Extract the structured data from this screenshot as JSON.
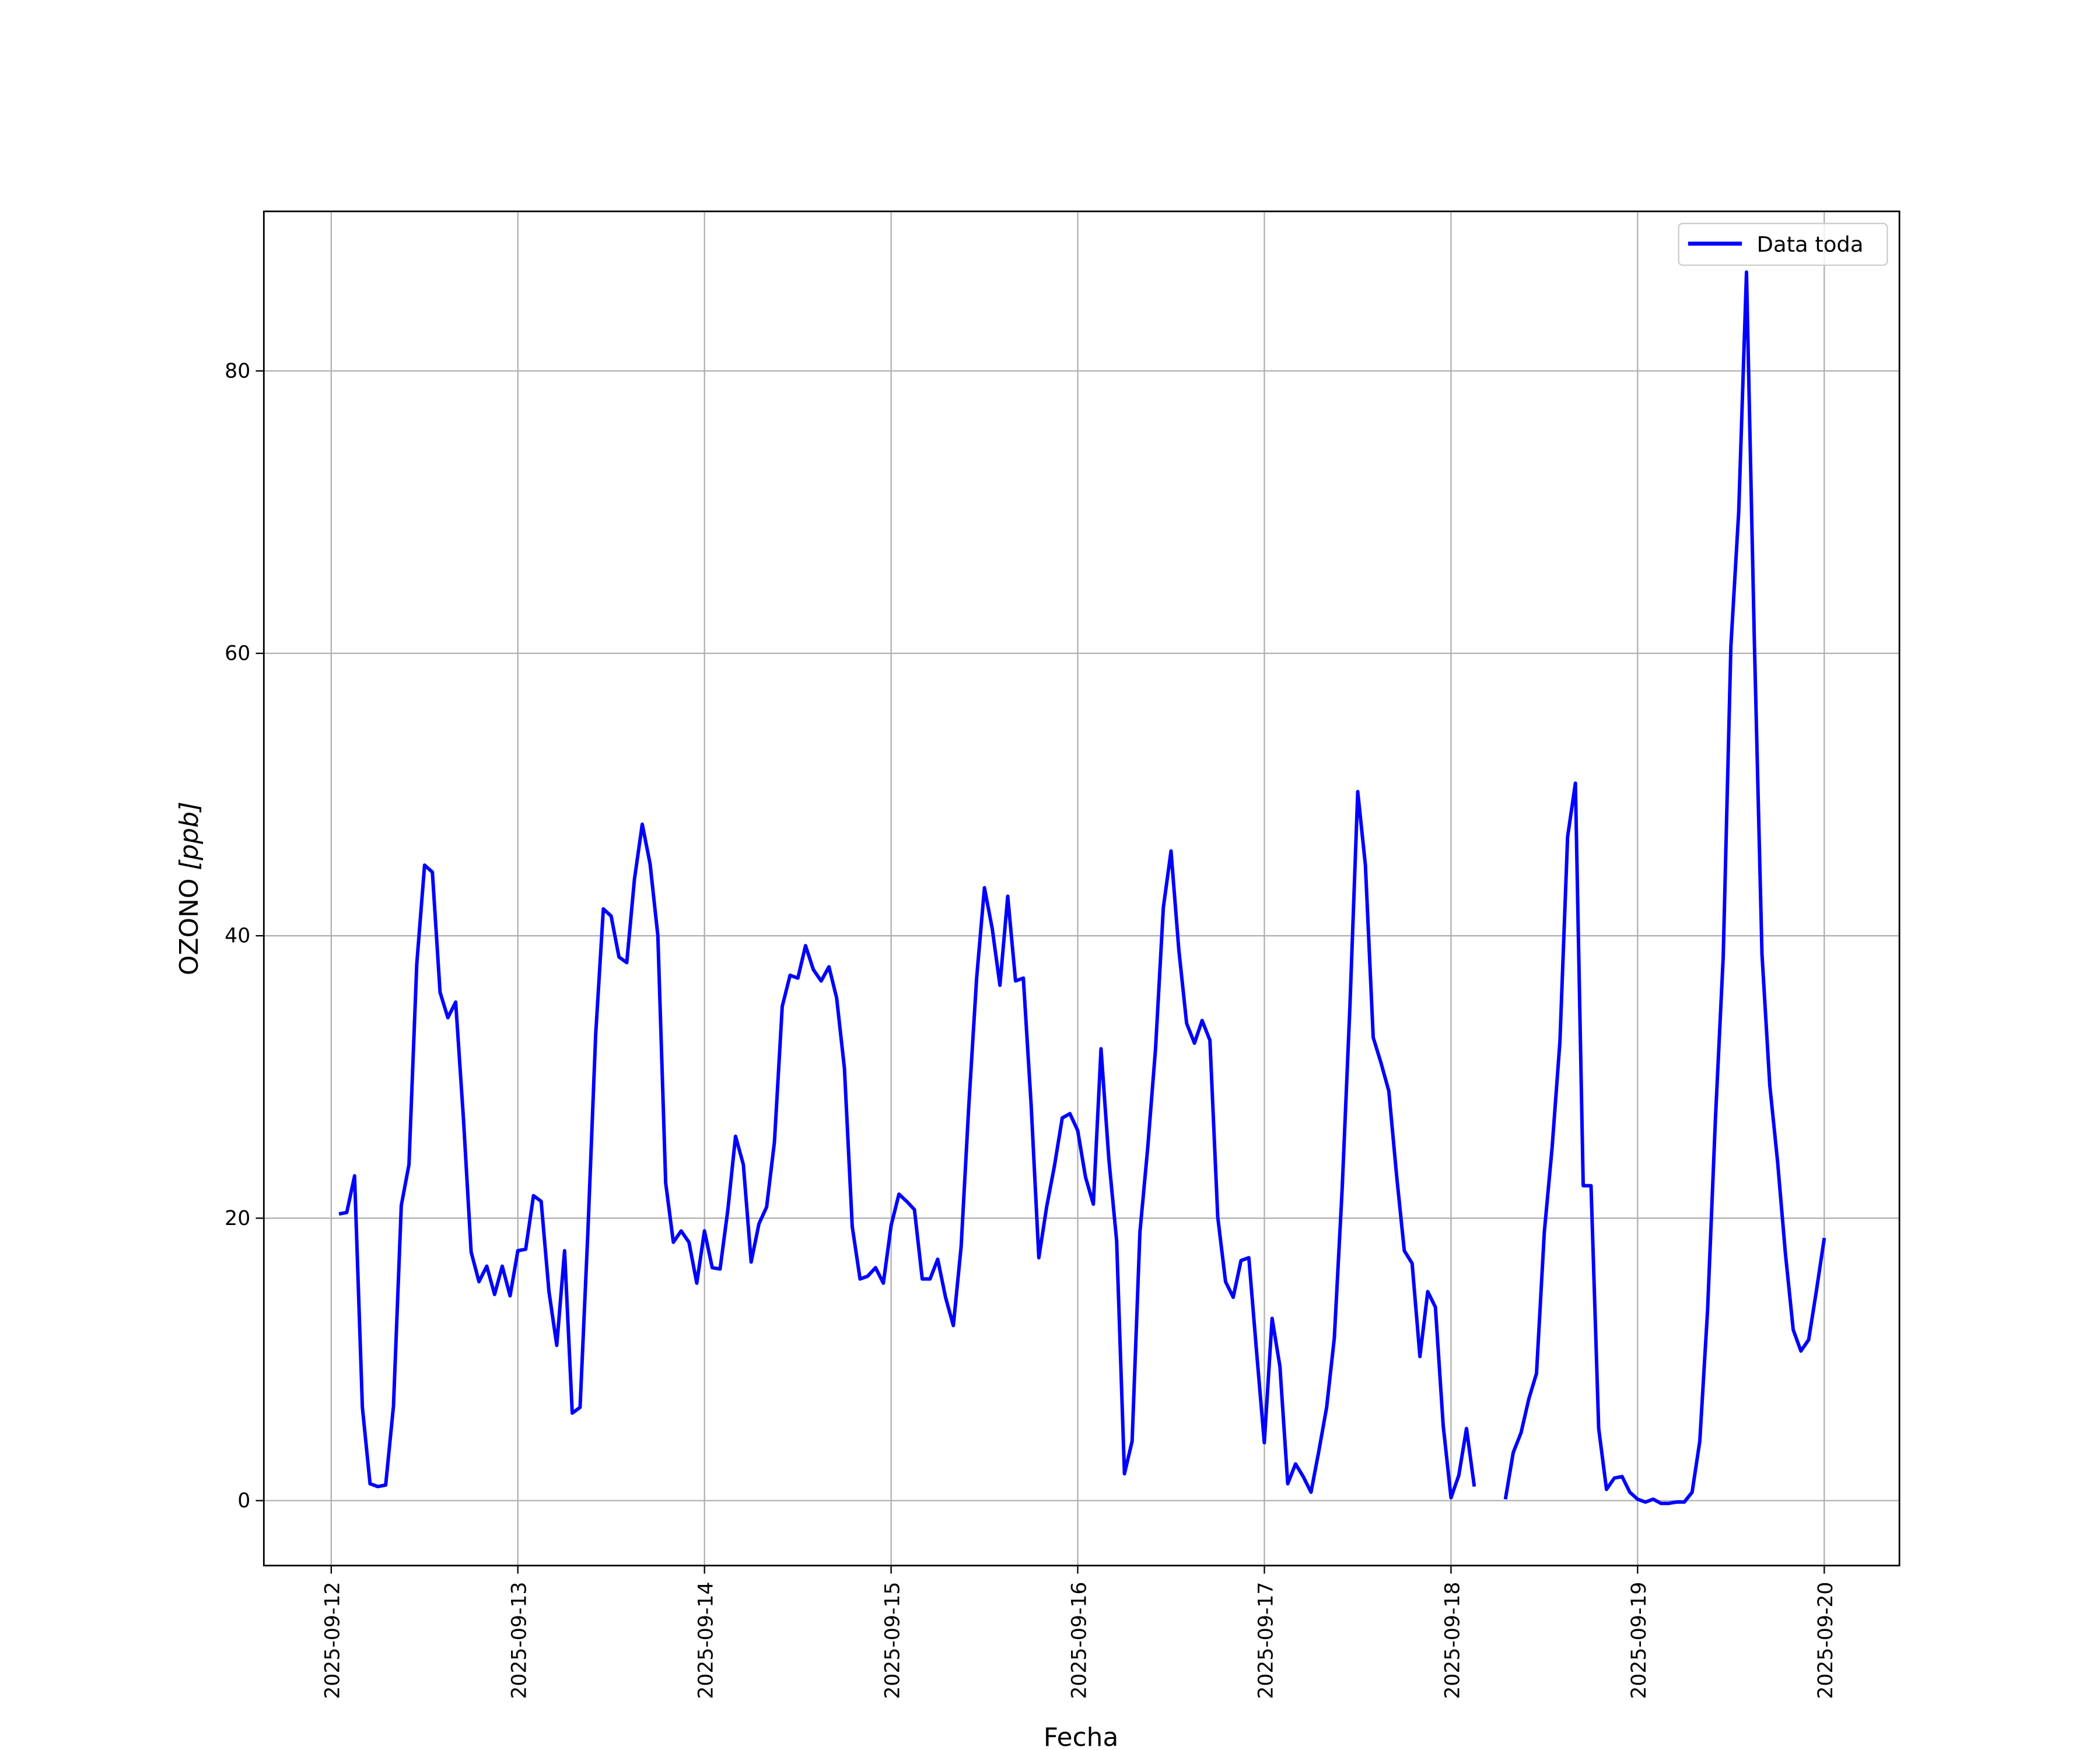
{
  "chart_data": {
    "type": "line",
    "title": "",
    "xlabel": "Fecha",
    "ylabel": "OZONO [ppb]",
    "ylabel_main": "OZONO",
    "ylabel_unit": "[ppb]",
    "ylim": [
      -4.6,
      91.3
    ],
    "xlim": [
      "2025-09-11T15:20",
      "2025-09-20T09:40"
    ],
    "grid": true,
    "legend_position": "top-right",
    "x_tick_labels": [
      "2025-09-12",
      "2025-09-13",
      "2025-09-14",
      "2025-09-15",
      "2025-09-16",
      "2025-09-17",
      "2025-09-18",
      "2025-09-19",
      "2025-09-20"
    ],
    "y_ticks": [
      0,
      20,
      40,
      60,
      80
    ],
    "y_tick_labels": [
      "0",
      "20",
      "40",
      "60",
      "80"
    ],
    "series": [
      {
        "name": "Data toda",
        "color": "#0000ff",
        "hourly_by_date": [
          {
            "date": "2025-09-12",
            "values": [
              null,
              20.3,
              20.4,
              23,
              6.6,
              1.2,
              1.0,
              1.1,
              6.7,
              20.9,
              23.8,
              38,
              45,
              44.5,
              36,
              34.2,
              35.3,
              27,
              17.6,
              15.5,
              16.6,
              14.6,
              16.6,
              14.5
            ]
          },
          {
            "date": "2025-09-13",
            "values": [
              17.7,
              17.8,
              21.6,
              21.2,
              14.8,
              11,
              17.7,
              6.2,
              6.6,
              19,
              33,
              41.9,
              41.4,
              38.5,
              38.1,
              44,
              47.9,
              45.1,
              40,
              22.5,
              18.3,
              19.1,
              18.3,
              15.4
            ]
          },
          {
            "date": "2025-09-14",
            "values": [
              19.1,
              16.5,
              16.4,
              20.6,
              25.8,
              23.8,
              16.9,
              19.6,
              20.8,
              25.4,
              35,
              37.2,
              37,
              39.3,
              37.6,
              36.8,
              37.8,
              35.6,
              30.6,
              19.4,
              15.7,
              15.9,
              16.5,
              15.4
            ]
          },
          {
            "date": "2025-09-15",
            "values": [
              19.5,
              21.7,
              21.2,
              20.6,
              15.7,
              15.7,
              17.1,
              14.4,
              12.4,
              18,
              28,
              37,
              43.4,
              40.5,
              36.5,
              42.8,
              36.8,
              37,
              28,
              17.2,
              20.8,
              23.7,
              27.1,
              27.4
            ]
          },
          {
            "date": "2025-09-16",
            "values": [
              26.2,
              22.9,
              21,
              32,
              24.2,
              18.4,
              1.9,
              4.2,
              19,
              25,
              32,
              42,
              46,
              39,
              33.8,
              32.4,
              34,
              32.6,
              20.1,
              15.5,
              14.4,
              17,
              17.2,
              10.5
            ]
          },
          {
            "date": "2025-09-17",
            "values": [
              4.1,
              12.9,
              9.5,
              1.2,
              2.6,
              1.7,
              0.6,
              3.5,
              6.6,
              11.5,
              22,
              35,
              50.2,
              45,
              32.8,
              31,
              29,
              23,
              17.7,
              16.8,
              10.2,
              14.8,
              13.7,
              5.3
            ]
          },
          {
            "date": "2025-09-18",
            "values": [
              0.2,
              1.8,
              5.1,
              1,
              null,
              null,
              null,
              0.1,
              3.4,
              4.8,
              7.2,
              9,
              19,
              25,
              32.5,
              47,
              50.8,
              22.3,
              22.3,
              5.1,
              0.8,
              1.6,
              1.7,
              0.6
            ]
          },
          {
            "date": "2025-09-19",
            "values": [
              0.1,
              -0.1,
              0.1,
              -0.2,
              -0.2,
              -0.1,
              -0.1,
              0.6,
              4.2,
              13.5,
              27,
              38.5,
              60.5,
              70,
              87,
              61,
              38.7,
              29.4,
              24,
              17.5,
              12.1,
              10.6,
              11.4,
              14.9
            ]
          },
          {
            "date": "2025-09-20",
            "values": [
              18.6
            ]
          }
        ]
      }
    ]
  }
}
